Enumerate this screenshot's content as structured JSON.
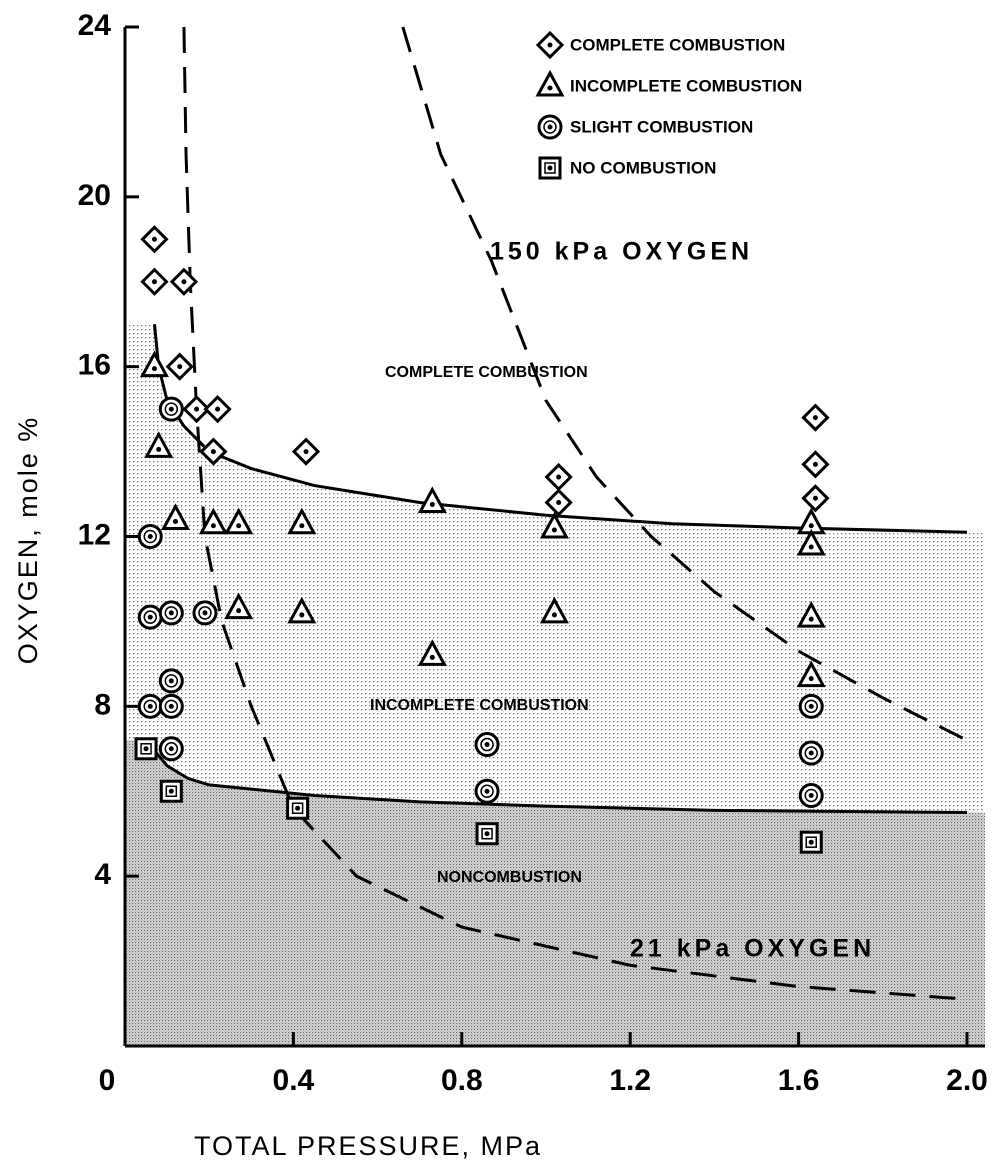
{
  "chart_data": {
    "type": "scatter",
    "xlabel": "TOTAL PRESSURE, MPa",
    "ylabel": "OXYGEN, mole %",
    "xlim": [
      0,
      2.0
    ],
    "ylim": [
      0,
      24
    ],
    "xticks": [
      0,
      0.4,
      0.8,
      1.2,
      1.6,
      {
        "value": 2.0,
        "label": "2.0"
      }
    ],
    "yticks": [
      4,
      8,
      12,
      16,
      20,
      24
    ],
    "legend": "upper right",
    "series": [
      {
        "name": "COMPLETE COMBUSTION",
        "marker": "diamond",
        "color": "#000000",
        "x": [
          0.07,
          0.07,
          0.14,
          0.13,
          0.17,
          0.22,
          0.21,
          0.43,
          1.03,
          1.03,
          1.64,
          1.64,
          1.64
        ],
        "y": [
          19.0,
          18.0,
          18.0,
          16.0,
          15.0,
          15.0,
          14.0,
          14.0,
          13.4,
          12.8,
          14.8,
          13.7,
          12.9
        ]
      },
      {
        "name": "INCOMPLETE COMBUSTION",
        "marker": "triangle",
        "color": "#000000",
        "x": [
          0.07,
          0.08,
          0.12,
          0.21,
          0.27,
          0.42,
          0.73,
          1.02,
          1.63,
          1.63,
          0.27,
          0.42,
          1.02,
          1.63,
          0.73,
          1.63
        ],
        "y": [
          16.0,
          14.1,
          12.4,
          12.3,
          12.3,
          12.3,
          12.8,
          12.2,
          12.3,
          11.8,
          10.3,
          10.2,
          10.2,
          10.1,
          9.2,
          8.7
        ]
      },
      {
        "name": "SLIGHT COMBUSTION",
        "marker": "circle",
        "color": "#000000",
        "x": [
          0.11,
          0.06,
          0.06,
          0.11,
          0.19,
          0.11,
          0.06,
          0.11,
          0.11,
          0.86,
          0.86,
          1.63,
          1.63,
          1.63
        ],
        "y": [
          15.0,
          12.0,
          10.1,
          10.2,
          10.2,
          8.6,
          8.0,
          8.0,
          7.0,
          7.1,
          6.0,
          8.0,
          6.9,
          5.9
        ]
      },
      {
        "name": "NO COMBUSTION",
        "marker": "square",
        "color": "#000000",
        "x": [
          0.05,
          0.11,
          0.41,
          0.86,
          1.63
        ],
        "y": [
          7.0,
          6.0,
          5.6,
          5.0,
          4.8
        ]
      }
    ],
    "curves": [
      {
        "style": "solid",
        "x": [
          0.07,
          0.08,
          0.1,
          0.14,
          0.2,
          0.3,
          0.45,
          0.7,
          1.0,
          1.3,
          1.6,
          2.0
        ],
        "y": [
          17.0,
          16.0,
          15.2,
          14.6,
          14.0,
          13.6,
          13.2,
          12.8,
          12.5,
          12.3,
          12.2,
          12.1
        ]
      },
      {
        "style": "solid",
        "x": [
          0.05,
          0.1,
          0.15,
          0.2,
          0.3,
          0.45,
          0.7,
          1.0,
          1.4,
          2.0
        ],
        "y": [
          7.2,
          6.6,
          6.3,
          6.15,
          6.05,
          5.9,
          5.75,
          5.65,
          5.55,
          5.5
        ]
      },
      {
        "style": "dashed",
        "x": [
          0.14,
          0.145,
          0.155,
          0.17,
          0.19,
          0.23,
          0.3,
          0.4,
          0.55,
          0.8,
          1.2,
          1.6,
          2.0
        ],
        "y": [
          24,
          21,
          18,
          15,
          12,
          10,
          8,
          5.6,
          4.0,
          2.8,
          1.9,
          1.4,
          1.1
        ]
      },
      {
        "style": "dashed",
        "x": [
          0.66,
          0.75,
          0.87,
          1.0,
          1.12,
          1.25,
          1.4,
          1.6,
          1.8,
          2.0
        ],
        "y": [
          24,
          21,
          18.5,
          15.2,
          13.4,
          12.0,
          10.7,
          9.3,
          8.2,
          7.2
        ]
      }
    ],
    "annotations": [
      "150 kPa OXYGEN",
      "COMPLETE COMBUSTION",
      "INCOMPLETE COMBUSTION",
      "NONCOMBUSTION",
      "21 kPa OXYGEN"
    ]
  }
}
